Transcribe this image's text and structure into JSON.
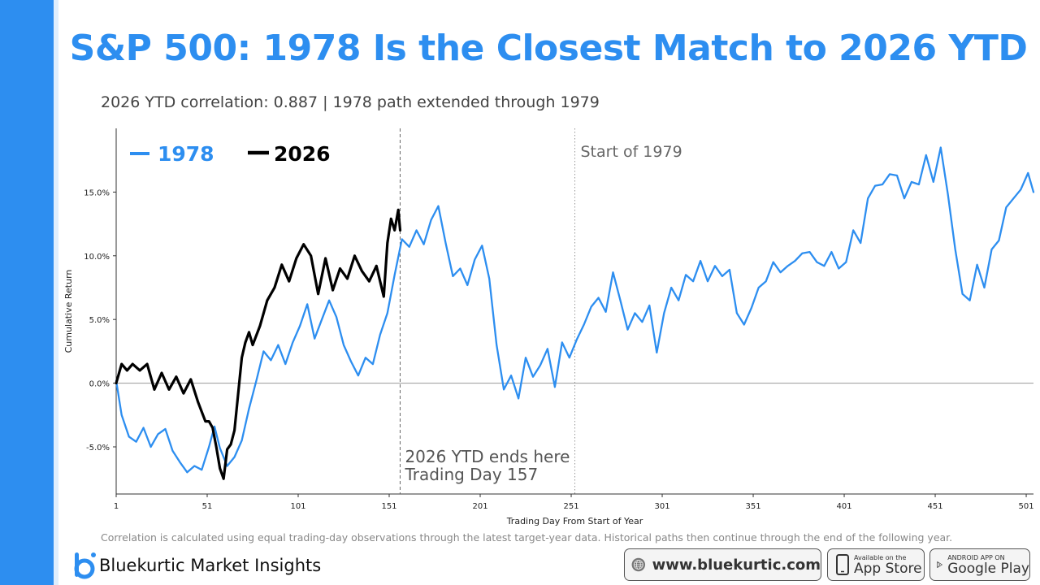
{
  "page": {
    "title": "S&P 500: 1978 Is the Closest Match to 2026 YTD",
    "subtitle": "2026 YTD correlation: 0.887 | 1978 path extended through 1979",
    "footnote": "Correlation is calculated using equal trading-day observations through the latest target-year data. Historical paths then continue through the end of the following year.",
    "brand": "Bluekurtic Market Insights",
    "website": "www.bluekurtic.com",
    "app_store_small": "Available on the",
    "app_store_big": "App Store",
    "google_play_small": "ANDROID APP ON",
    "google_play_big": "Google Play"
  },
  "colors": {
    "accent": "#2d8ef0",
    "series_1978": "#2d8ef0",
    "series_2026": "#000000"
  },
  "chart_data": {
    "type": "line",
    "xlabel": "Trading Day From Start of Year",
    "ylabel": "Cumulative Return",
    "xlim": [
      1,
      505
    ],
    "ylim": [
      -8.7,
      20.0
    ],
    "x_ticks": [
      1,
      51,
      101,
      151,
      201,
      251,
      301,
      351,
      401,
      451,
      501
    ],
    "y_ticks": [
      -5,
      0,
      5,
      10,
      15
    ],
    "y_tick_labels": [
      "-5.0%",
      "0.0%",
      "5.0%",
      "10.0%",
      "15.0%"
    ],
    "legend": {
      "placement": "top-left",
      "entries": [
        "1978",
        "2026"
      ]
    },
    "grid": false,
    "reference_lines": [
      {
        "x": 157,
        "style": "dashed",
        "label": [
          "2026 YTD ends here",
          "Trading Day 157"
        ]
      },
      {
        "x": 253,
        "style": "dotted",
        "label": [
          "Start of 1979"
        ]
      }
    ],
    "hline": 0,
    "series": [
      {
        "name": "1978",
        "x": [
          1,
          4,
          8,
          12,
          16,
          20,
          24,
          28,
          32,
          36,
          40,
          44,
          48,
          52,
          55,
          58,
          62,
          66,
          70,
          74,
          78,
          82,
          86,
          90,
          94,
          98,
          102,
          106,
          110,
          114,
          118,
          122,
          126,
          130,
          134,
          138,
          142,
          146,
          150,
          154,
          158,
          162,
          166,
          170,
          174,
          178,
          182,
          186,
          190,
          194,
          198,
          202,
          206,
          210,
          214,
          218,
          222,
          226,
          230,
          234,
          238,
          242,
          246,
          250,
          254,
          258,
          262,
          266,
          270,
          274,
          278,
          282,
          286,
          290,
          294,
          298,
          302,
          306,
          310,
          314,
          318,
          322,
          326,
          330,
          334,
          338,
          342,
          346,
          350,
          354,
          358,
          362,
          366,
          370,
          374,
          378,
          382,
          386,
          390,
          394,
          398,
          402,
          406,
          410,
          414,
          418,
          422,
          426,
          430,
          434,
          438,
          442,
          446,
          450,
          454,
          458,
          462,
          466,
          470,
          474,
          478,
          482,
          486,
          490,
          494,
          498,
          502,
          505
        ],
        "values": [
          0.2,
          -2.5,
          -4.2,
          -4.6,
          -3.5,
          -5.0,
          -4.0,
          -3.6,
          -5.3,
          -6.2,
          -7.0,
          -6.5,
          -6.8,
          -5.0,
          -3.4,
          -5.1,
          -6.5,
          -5.8,
          -4.5,
          -2.0,
          0.2,
          2.5,
          1.8,
          3.0,
          1.5,
          3.2,
          4.5,
          6.2,
          3.5,
          5.0,
          6.5,
          5.2,
          3.0,
          1.7,
          0.6,
          2.0,
          1.5,
          3.8,
          5.5,
          8.5,
          11.3,
          10.7,
          12.0,
          10.9,
          12.8,
          13.9,
          11.0,
          8.4,
          9.0,
          7.7,
          9.7,
          10.8,
          8.2,
          3.0,
          -0.5,
          0.6,
          -1.2,
          2.0,
          0.5,
          1.4,
          2.7,
          -0.3,
          3.2,
          2.0,
          3.4,
          4.6,
          6.0,
          6.7,
          5.6,
          8.7,
          6.5,
          4.2,
          5.5,
          4.8,
          6.1,
          2.4,
          5.5,
          7.5,
          6.5,
          8.5,
          8.0,
          9.6,
          8.0,
          9.2,
          8.4,
          8.9,
          5.5,
          4.6,
          5.9,
          7.5,
          8.0,
          9.5,
          8.7,
          9.2,
          9.6,
          10.2,
          10.3,
          9.5,
          9.2,
          10.3,
          9.0,
          9.5,
          12.0,
          11.0,
          14.5,
          15.5,
          15.6,
          16.4,
          16.3,
          14.5,
          15.8,
          15.6,
          17.9,
          15.8,
          18.5,
          14.8,
          10.5,
          7.0,
          6.5,
          9.3,
          7.5,
          10.5,
          11.2,
          13.8,
          14.5,
          15.2,
          16.5,
          15.0
        ]
      },
      {
        "name": "2026",
        "x": [
          1,
          4,
          7,
          10,
          14,
          18,
          22,
          26,
          30,
          34,
          38,
          42,
          46,
          50,
          52,
          54,
          56,
          58,
          60,
          62,
          64,
          66,
          70,
          72,
          74,
          76,
          80,
          84,
          88,
          92,
          96,
          100,
          104,
          108,
          112,
          116,
          120,
          124,
          128,
          132,
          136,
          140,
          144,
          148,
          150,
          152,
          154,
          156,
          157
        ],
        "values": [
          0.0,
          1.5,
          1.0,
          1.5,
          1.0,
          1.5,
          -0.5,
          0.8,
          -0.5,
          0.5,
          -0.8,
          0.3,
          -1.5,
          -3.0,
          -3.0,
          -3.5,
          -5.0,
          -6.7,
          -7.5,
          -5.2,
          -4.8,
          -3.7,
          2.0,
          3.2,
          4.0,
          3.0,
          4.5,
          6.5,
          7.5,
          9.3,
          8.0,
          9.8,
          10.9,
          10.0,
          7.0,
          9.8,
          7.3,
          9.0,
          8.2,
          10.0,
          8.8,
          8.0,
          9.2,
          6.8,
          11.0,
          12.9,
          12.0,
          13.6,
          12.0
        ]
      }
    ]
  }
}
